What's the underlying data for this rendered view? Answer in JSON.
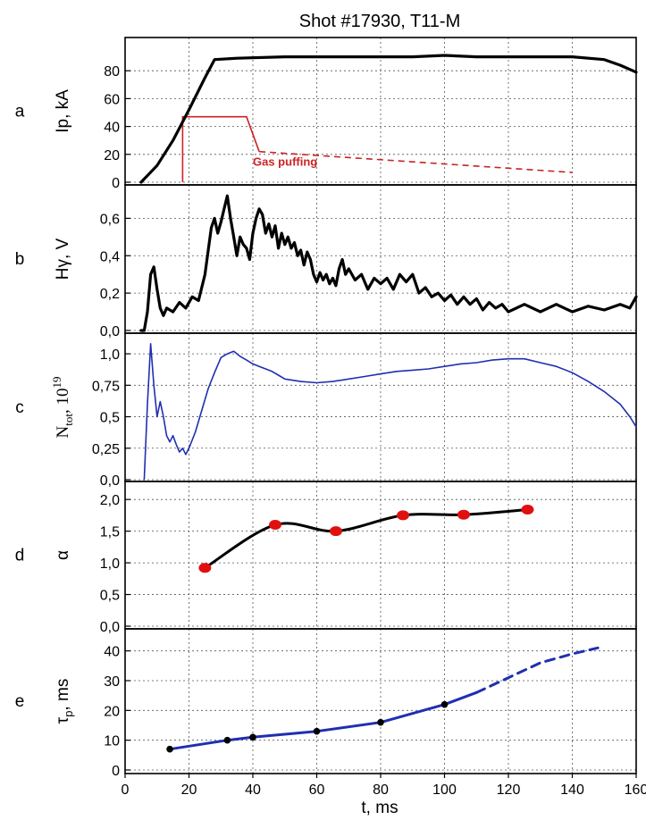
{
  "title": "Shot #17930, T11-M",
  "xlabel": "t, ms",
  "x_ticks": [
    "0",
    "20",
    "40",
    "60",
    "80",
    "100",
    "120",
    "140",
    "160"
  ],
  "colors": {
    "black": "#000000",
    "blue": "#1f2fb0",
    "red": "#cc2222",
    "marker_red": "#e01010"
  },
  "chart_data": [
    {
      "type": "line",
      "letter": "a",
      "ylabel": "Ip, kA",
      "xlim": [
        0,
        160
      ],
      "ylim": [
        0,
        100
      ],
      "y_ticks": [
        "0",
        "20",
        "40",
        "60",
        "80"
      ],
      "series": [
        {
          "name": "Ip",
          "color": "#000000",
          "x": [
            5,
            10,
            15,
            20,
            25,
            28,
            35,
            50,
            70,
            90,
            100,
            110,
            130,
            140,
            150,
            155,
            160
          ],
          "y": [
            0,
            12,
            30,
            52,
            75,
            88,
            89,
            90,
            90,
            90,
            91,
            90,
            90,
            90,
            88,
            84,
            79
          ]
        }
      ],
      "annotations": [
        {
          "text": "Gas puffing",
          "color": "#cc2222",
          "label_x": 40,
          "label_y": 12,
          "waveform": {
            "x": [
              18,
              18,
              20,
              38,
              42,
              140
            ],
            "y": [
              0,
              47,
              47,
              47,
              22,
              7
            ]
          },
          "solid_until_x": 42
        }
      ]
    },
    {
      "type": "line",
      "letter": "b",
      "ylabel": "Hγ, V",
      "xlim": [
        0,
        160
      ],
      "ylim": [
        0,
        0.75
      ],
      "y_ticks": [
        "0,0",
        "0,2",
        "0,4",
        "0,6"
      ],
      "series": [
        {
          "name": "Hγ",
          "color": "#000000",
          "x": [
            5,
            6,
            7,
            8,
            9,
            10,
            11,
            12,
            13,
            15,
            17,
            19,
            21,
            23,
            25,
            27,
            28,
            29,
            30,
            31,
            32,
            33,
            34,
            35,
            36,
            37,
            38,
            39,
            40,
            41,
            42,
            43,
            44,
            45,
            46,
            47,
            48,
            49,
            50,
            51,
            52,
            53,
            54,
            55,
            56,
            57,
            58,
            59,
            60,
            61,
            62,
            63,
            64,
            65,
            66,
            67,
            68,
            69,
            70,
            72,
            74,
            76,
            78,
            80,
            82,
            84,
            86,
            88,
            90,
            92,
            94,
            96,
            98,
            100,
            102,
            104,
            106,
            108,
            110,
            112,
            114,
            116,
            118,
            120,
            125,
            130,
            135,
            140,
            145,
            150,
            155,
            158,
            160
          ],
          "y": [
            0,
            0,
            0.1,
            0.3,
            0.34,
            0.22,
            0.12,
            0.08,
            0.12,
            0.1,
            0.15,
            0.12,
            0.18,
            0.16,
            0.3,
            0.55,
            0.6,
            0.52,
            0.58,
            0.65,
            0.72,
            0.6,
            0.5,
            0.4,
            0.5,
            0.46,
            0.44,
            0.38,
            0.52,
            0.6,
            0.65,
            0.62,
            0.52,
            0.57,
            0.5,
            0.56,
            0.44,
            0.52,
            0.46,
            0.5,
            0.44,
            0.47,
            0.4,
            0.43,
            0.35,
            0.42,
            0.38,
            0.3,
            0.26,
            0.31,
            0.27,
            0.3,
            0.25,
            0.28,
            0.24,
            0.33,
            0.38,
            0.3,
            0.33,
            0.27,
            0.3,
            0.22,
            0.28,
            0.25,
            0.28,
            0.22,
            0.3,
            0.26,
            0.3,
            0.2,
            0.23,
            0.18,
            0.2,
            0.16,
            0.19,
            0.14,
            0.18,
            0.14,
            0.17,
            0.11,
            0.15,
            0.12,
            0.14,
            0.1,
            0.14,
            0.1,
            0.14,
            0.1,
            0.13,
            0.11,
            0.14,
            0.12,
            0.18
          ]
        }
      ]
    },
    {
      "type": "line",
      "letter": "c",
      "ylabel": "N",
      "ylabel_sub": "tot",
      "ylabel_tail": ", 10",
      "ylabel_sup": "19",
      "xlim": [
        0,
        160
      ],
      "ylim": [
        0,
        1.1
      ],
      "y_ticks": [
        "0,0",
        "0,25",
        "0,5",
        "0,75",
        "1,0"
      ],
      "series": [
        {
          "name": "Ntot",
          "color": "#1f2fb0",
          "x": [
            6,
            7,
            8,
            9,
            10,
            11,
            12,
            13,
            14,
            15,
            16,
            17,
            18,
            19,
            20,
            22,
            24,
            26,
            28,
            30,
            32,
            34,
            36,
            38,
            40,
            42,
            44,
            46,
            48,
            50,
            55,
            60,
            65,
            70,
            75,
            80,
            85,
            90,
            95,
            100,
            105,
            110,
            115,
            120,
            125,
            130,
            135,
            140,
            145,
            150,
            155,
            158,
            160
          ],
          "y": [
            0,
            0.6,
            1.08,
            0.75,
            0.5,
            0.62,
            0.5,
            0.35,
            0.3,
            0.35,
            0.28,
            0.22,
            0.25,
            0.2,
            0.25,
            0.38,
            0.55,
            0.72,
            0.85,
            0.97,
            1.0,
            1.02,
            0.98,
            0.95,
            0.92,
            0.9,
            0.88,
            0.86,
            0.83,
            0.8,
            0.78,
            0.77,
            0.78,
            0.8,
            0.82,
            0.84,
            0.86,
            0.87,
            0.88,
            0.9,
            0.92,
            0.93,
            0.95,
            0.96,
            0.96,
            0.93,
            0.9,
            0.85,
            0.78,
            0.7,
            0.6,
            0.5,
            0.42
          ]
        }
      ]
    },
    {
      "type": "line",
      "letter": "d",
      "ylabel": "α",
      "xlim": [
        0,
        160
      ],
      "ylim": [
        0,
        2.2
      ],
      "y_ticks": [
        "0,0",
        "0,5",
        "1,0",
        "1,5",
        "2,0"
      ],
      "series": [
        {
          "name": "α",
          "color": "#000000",
          "marker_color": "#e01010",
          "x": [
            25,
            47,
            66,
            87,
            106,
            126
          ],
          "y": [
            0.92,
            1.6,
            1.5,
            1.75,
            1.76,
            1.84
          ]
        }
      ]
    },
    {
      "type": "line",
      "letter": "e",
      "ylabel": "τ",
      "ylabel_sub": "p",
      "ylabel_tail": ", ms",
      "xlim": [
        0,
        160
      ],
      "ylim": [
        0,
        45
      ],
      "y_ticks": [
        "0",
        "10",
        "20",
        "30",
        "40"
      ],
      "series": [
        {
          "name": "τp",
          "color": "#1f2fb0",
          "x": [
            14,
            32,
            40,
            60,
            80,
            100,
            110
          ],
          "y": [
            7,
            10,
            11,
            13,
            16,
            22,
            26
          ],
          "markers_x": [
            14,
            32,
            40,
            60,
            80,
            100
          ],
          "markers_y": [
            7,
            10,
            11,
            13,
            16,
            22
          ]
        },
        {
          "name": "τp-extrapolated",
          "color": "#1f2fb0",
          "dashed": true,
          "x": [
            110,
            120,
            130,
            140,
            148
          ],
          "y": [
            26,
            31,
            36,
            39,
            41
          ]
        }
      ]
    }
  ]
}
